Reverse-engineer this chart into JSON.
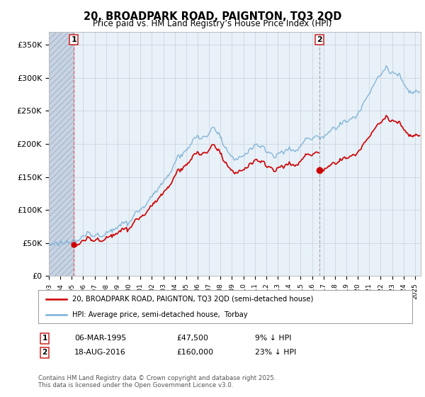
{
  "title": "20, BROADPARK ROAD, PAIGNTON, TQ3 2QD",
  "subtitle": "Price paid vs. HM Land Registry’s House Price Index (HPI)",
  "ylabel_ticks": [
    "£0",
    "£50K",
    "£100K",
    "£150K",
    "£200K",
    "£250K",
    "£300K",
    "£350K"
  ],
  "ytick_values": [
    0,
    50000,
    100000,
    150000,
    200000,
    250000,
    300000,
    350000
  ],
  "ylim": [
    0,
    370000
  ],
  "xlim_start": 1993.0,
  "xlim_end": 2025.5,
  "transaction1": {
    "date": 1995.18,
    "price": 47500,
    "label": "1"
  },
  "transaction2": {
    "date": 2016.63,
    "price": 160000,
    "label": "2"
  },
  "legend_line1": "20, BROADPARK ROAD, PAIGNTON, TQ3 2QD (semi-detached house)",
  "legend_line2": "HPI: Average price, semi-detached house,  Torbay",
  "footnote": "Contains HM Land Registry data © Crown copyright and database right 2025.\nThis data is licensed under the Open Government Licence v3.0.",
  "color_price": "#cc0000",
  "color_hpi": "#7ab0d4",
  "color_vline1": "#e06060",
  "color_vline2": "#aaaaaa",
  "background_color": "#e8f0f8",
  "hatch_color": "#c8d4e4"
}
